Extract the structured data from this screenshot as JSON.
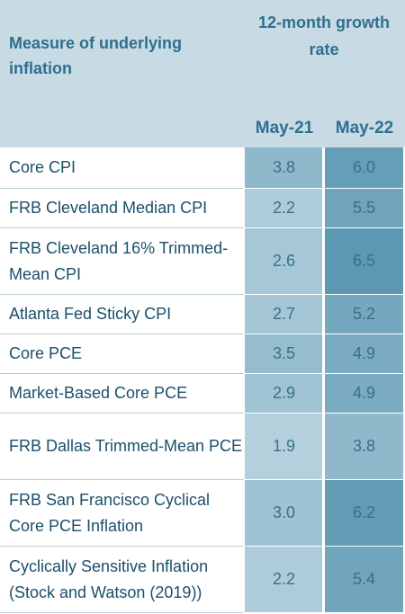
{
  "header": {
    "measure_label": "Measure of underlying inflation",
    "growth_label": "12-month growth rate",
    "columns": [
      "May-21",
      "May-22"
    ]
  },
  "colors": {
    "header_bg": "#c8dbe4",
    "header_text": "#2e6f90",
    "label_text": "#1b4f6b",
    "value_text": "#3b6f8a",
    "scale_low": "#b3d0dc",
    "scale_high": "#5c98b2"
  },
  "chart_data": {
    "type": "table",
    "columns": [
      "Measure of underlying inflation",
      "May-21",
      "May-22"
    ],
    "rows": [
      {
        "measure": "Core CPI",
        "may21": "3.8",
        "may22": "6.0"
      },
      {
        "measure": "FRB Cleveland Median CPI",
        "may21": "2.2",
        "may22": "5.5"
      },
      {
        "measure": "FRB Cleveland 16% Trimmed-Mean CPI",
        "may21": "2.6",
        "may22": "6.5"
      },
      {
        "measure": "Atlanta Fed Sticky CPI",
        "may21": "2.7",
        "may22": "5.2"
      },
      {
        "measure": "Core PCE",
        "may21": "3.5",
        "may22": "4.9"
      },
      {
        "measure": "Market-Based Core PCE",
        "may21": "2.9",
        "may22": "4.9"
      },
      {
        "measure": "FRB Dallas Trimmed-Mean PCE",
        "may21": "1.9",
        "may22": "3.8"
      },
      {
        "measure": "FRB San Francisco Cyclical Core PCE Inflation",
        "may21": "3.0",
        "may22": "6.2"
      },
      {
        "measure": "Cyclically Sensitive Inflation (Stock and Watson (2019))",
        "may21": "2.2",
        "may22": "5.4"
      }
    ]
  }
}
